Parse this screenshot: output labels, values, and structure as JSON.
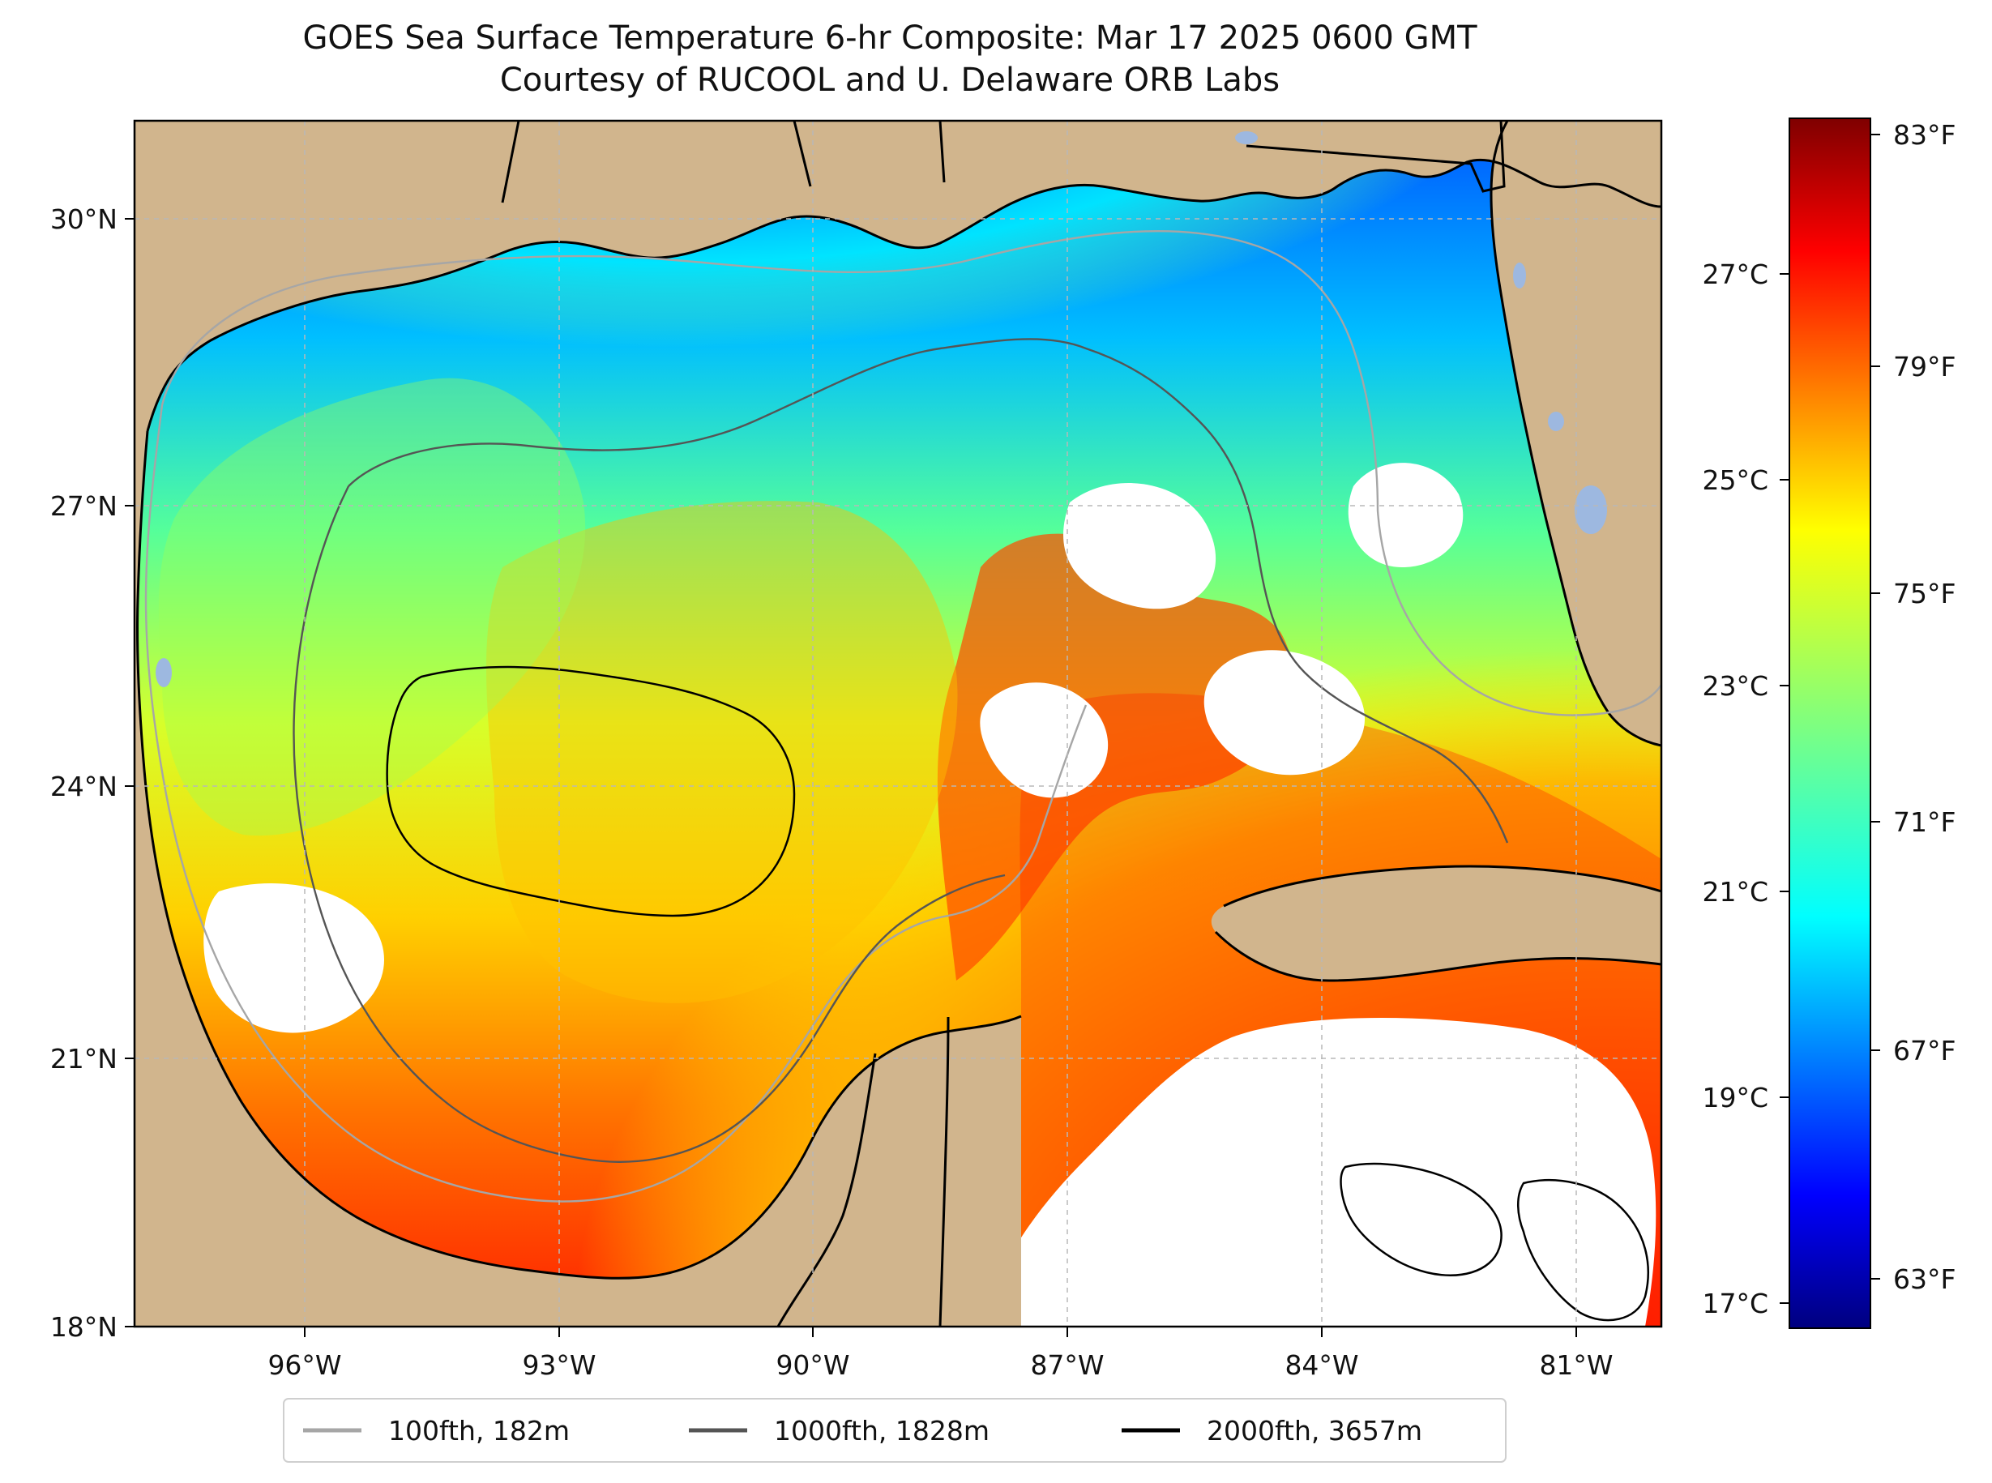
{
  "title": {
    "line1": "GOES Sea Surface Temperature 6-hr Composite: Mar 17 2025 0600 GMT",
    "line2": "Courtesy of RUCOOL and U. Delaware ORB Labs"
  },
  "map": {
    "lon_range": [
      -98,
      -80
    ],
    "lat_range": [
      18,
      31
    ],
    "land_color": "#d1b58d",
    "no_data_color": "#ffffff",
    "lake_color": "#9db8e0",
    "gridlines": "dashed gray",
    "lon_ticks": [
      "96°W",
      "93°W",
      "90°W",
      "87°W",
      "84°W",
      "81°W"
    ],
    "lat_ticks": [
      "30°N",
      "27°N",
      "24°N",
      "21°N",
      "18°N"
    ]
  },
  "colorbar": {
    "colormap": "jet",
    "range_f": [
      62,
      83.5
    ],
    "fahrenheit_ticks": [
      "83°F",
      "79°F",
      "75°F",
      "71°F",
      "67°F",
      "63°F"
    ],
    "celsius_ticks": [
      "27°C",
      "25°C",
      "23°C",
      "21°C",
      "19°C",
      "17°C"
    ]
  },
  "legend": {
    "items": [
      {
        "label": "100fth, 182m",
        "color": "#a6a6a6"
      },
      {
        "label": "1000fth, 1828m",
        "color": "#555555"
      },
      {
        "label": "2000fth, 3657m",
        "color": "#000000"
      }
    ]
  }
}
